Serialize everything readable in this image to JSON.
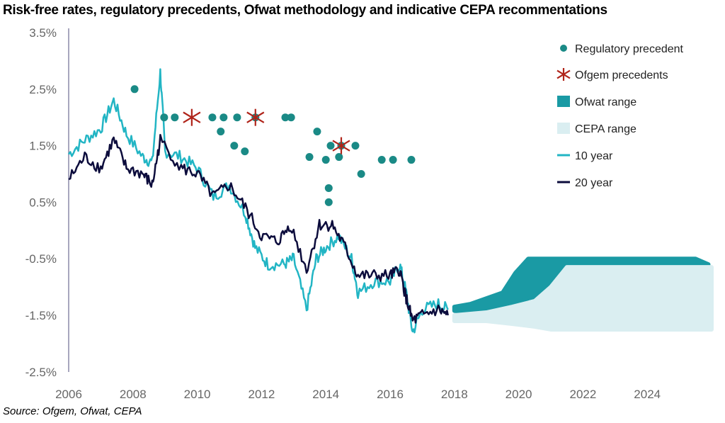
{
  "chart_data": {
    "type": "line",
    "title": "Risk-free rates, regulatory precedents, Ofwat methodology and indicative CEPA recommentations",
    "source": "Source: Ofgem, Ofwat, CEPA",
    "xlim": [
      2006,
      2026
    ],
    "ylim": [
      -2.5,
      3.5
    ],
    "x_ticks": [
      "2006",
      "2008",
      "2010",
      "2012",
      "2014",
      "2016",
      "2018",
      "2020",
      "2022",
      "2024"
    ],
    "y_ticks": [
      {
        "label": "3.5%",
        "value": 3.5
      },
      {
        "label": "2.5%",
        "value": 2.5
      },
      {
        "label": "1.5%",
        "value": 1.5
      },
      {
        "label": "0.5%",
        "value": 0.5
      },
      {
        "label": "-0.5%",
        "value": -0.5
      },
      {
        "label": "-1.5%",
        "value": -1.5
      },
      {
        "label": "-2.5%",
        "value": -2.5
      }
    ],
    "grid": false,
    "legend_placement": "top-right",
    "colors": {
      "precedent": "#1a8a86",
      "ofgem": "#b0241a",
      "ofwat": "#1a9aa4",
      "cepa": "#daeef1",
      "ten": "#22b5c4",
      "twenty": "#0c0c3c",
      "neg_tick": "#e02020",
      "pos_tick": "#666666"
    },
    "legend": [
      "Regulatory precedent",
      "Ofgem precedents",
      "Ofwat range",
      "CEPA range",
      "10 year",
      "20 year"
    ],
    "regulatory_precedent": [
      [
        2008.05,
        2.5
      ],
      [
        2008.97,
        2.0
      ],
      [
        2009.3,
        2.0
      ],
      [
        2010.47,
        2.0
      ],
      [
        2010.82,
        2.0
      ],
      [
        2010.73,
        1.75
      ],
      [
        2011.24,
        2.0
      ],
      [
        2011.15,
        1.5
      ],
      [
        2011.48,
        1.4
      ],
      [
        2011.81,
        2.0
      ],
      [
        2012.74,
        2.0
      ],
      [
        2012.92,
        2.0
      ],
      [
        2013.73,
        1.75
      ],
      [
        2013.49,
        1.3
      ],
      [
        2014.0,
        1.25
      ],
      [
        2014.15,
        1.5
      ],
      [
        2014.41,
        1.3
      ],
      [
        2014.48,
        1.5
      ],
      [
        2014.92,
        1.5
      ],
      [
        2015.1,
        1.0
      ],
      [
        2014.09,
        0.75
      ],
      [
        2014.09,
        0.5
      ],
      [
        2015.74,
        1.25
      ],
      [
        2016.09,
        1.25
      ],
      [
        2016.66,
        1.25
      ]
    ],
    "ofgem_precedents": [
      [
        2009.83,
        2.0
      ],
      [
        2011.81,
        2.0
      ],
      [
        2014.48,
        1.5
      ]
    ],
    "ofwat_range": {
      "x": [
        2018,
        2018.5,
        2019,
        2019.5,
        2019.9,
        2020.3,
        2021,
        2025.5,
        2025.9
      ],
      "upper": [
        -1.35,
        -1.3,
        -1.2,
        -1.1,
        -0.75,
        -0.5,
        -0.5,
        -0.5,
        -0.6
      ],
      "lower": [
        -1.42,
        -1.45,
        -1.42,
        -1.38,
        -1.32,
        -1.2,
        -1.1,
        -1.1,
        -1.1
      ]
    },
    "cepa_range": {
      "x": [
        2018,
        2019,
        2019.8,
        2020.5,
        2021,
        2021.5,
        2026
      ],
      "upper": [
        -1.5,
        -1.45,
        -1.35,
        -1.25,
        -1.0,
        -0.65,
        -0.65
      ],
      "lower": [
        -1.6,
        -1.6,
        -1.65,
        -1.7,
        -1.75,
        -1.75,
        -1.75
      ]
    },
    "series": [
      {
        "name": "10 year",
        "x": [
          2006,
          2006.5,
          2007,
          2007.4,
          2007.8,
          2008.3,
          2008.6,
          2008.85,
          2009.0,
          2009.5,
          2010,
          2010.5,
          2011,
          2011.5,
          2011.8,
          2012.2,
          2012.7,
          2013.0,
          2013.4,
          2013.7,
          2014.0,
          2014.4,
          2014.8,
          2015.0,
          2015.5,
          2016.0,
          2016.3,
          2016.5,
          2016.7,
          2017.0,
          2017.5,
          2017.8
        ],
        "values": [
          1.35,
          1.6,
          1.8,
          2.3,
          1.7,
          1.3,
          1.2,
          2.8,
          1.4,
          1.3,
          1.1,
          0.6,
          0.8,
          0.3,
          -0.3,
          -0.6,
          -0.6,
          -0.5,
          -1.4,
          -0.5,
          -0.3,
          -0.1,
          -0.5,
          -1.1,
          -0.9,
          -0.9,
          -0.6,
          -1.1,
          -1.8,
          -1.4,
          -1.3,
          -1.4
        ]
      },
      {
        "name": "20 year",
        "x": [
          2006,
          2006.5,
          2007,
          2007.4,
          2007.8,
          2008.3,
          2008.6,
          2008.85,
          2009.5,
          2010,
          2010.5,
          2011,
          2011.5,
          2012,
          2012.5,
          2012.9,
          2013.4,
          2013.8,
          2014.2,
          2014.6,
          2015.0,
          2015.5,
          2016.0,
          2016.3,
          2016.5,
          2016.7,
          2017,
          2017.5,
          2017.8
        ],
        "values": [
          0.9,
          1.3,
          1.1,
          1.6,
          1.1,
          1.0,
          0.8,
          1.6,
          1.1,
          1.0,
          0.6,
          0.8,
          0.4,
          -0.1,
          -0.2,
          0.1,
          -0.7,
          0.1,
          0.1,
          -0.3,
          -0.8,
          -0.8,
          -0.8,
          -0.7,
          -1.2,
          -1.6,
          -1.5,
          -1.4,
          -1.5
        ]
      }
    ]
  }
}
